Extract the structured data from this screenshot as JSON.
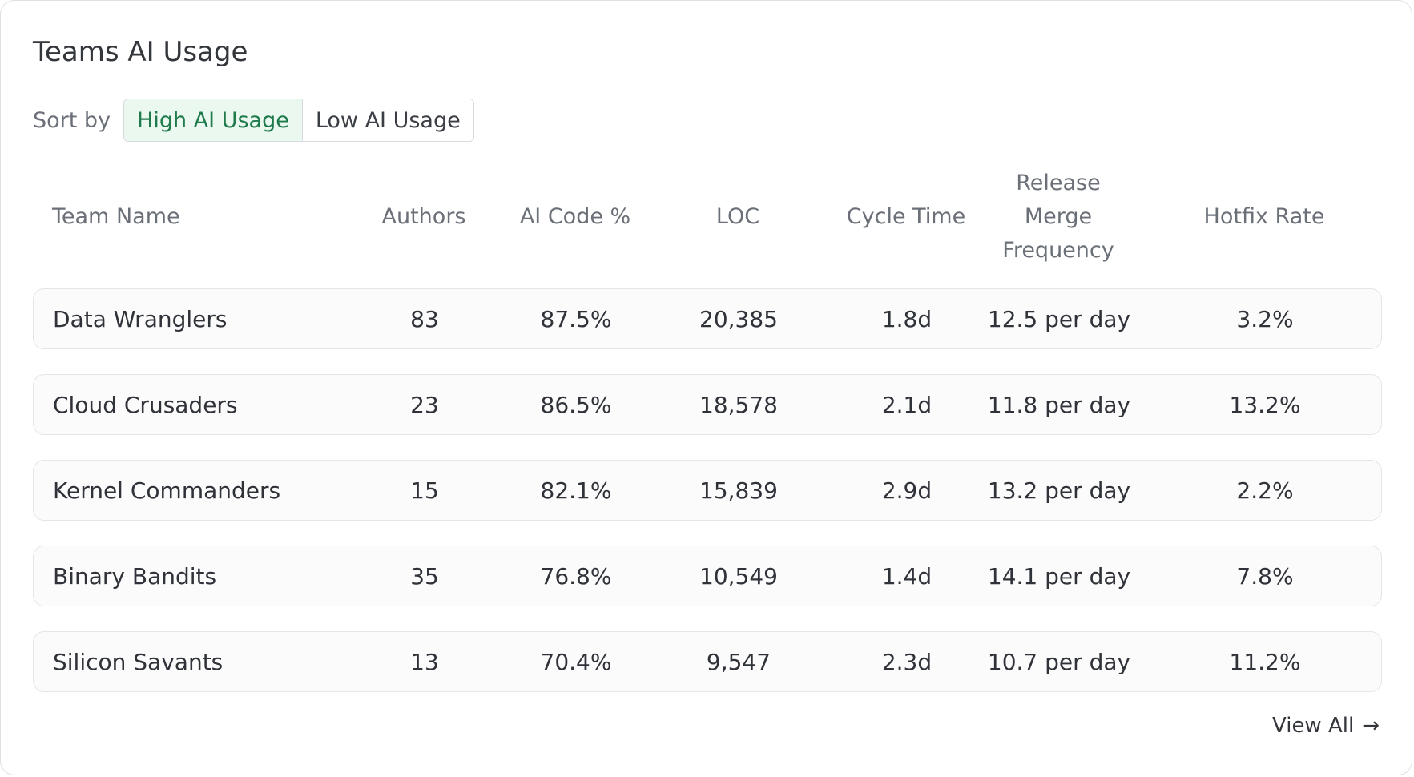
{
  "title": "Teams AI Usage",
  "sort": {
    "label": "Sort by",
    "options": [
      "High AI Usage",
      "Low AI Usage"
    ],
    "selected": "High AI Usage"
  },
  "table": {
    "columns": [
      "Team Name",
      "Authors",
      "AI Code %",
      "LOC",
      "Cycle Time",
      "Release Merge Frequency",
      "Hotfix Rate"
    ],
    "column_lines": {
      "release": [
        "Release",
        "Merge",
        "Frequency"
      ]
    },
    "rows": [
      [
        "Data Wranglers",
        "83",
        "87.5%",
        "20,385",
        "1.8d",
        "12.5 per day",
        "3.2%"
      ],
      [
        "Cloud Crusaders",
        "23",
        "86.5%",
        "18,578",
        "2.1d",
        "11.8 per day",
        "13.2%"
      ],
      [
        "Kernel Commanders",
        "15",
        "82.1%",
        "15,839",
        "2.9d",
        "13.2 per day",
        "2.2%"
      ],
      [
        "Binary Bandits",
        "35",
        "76.8%",
        "10,549",
        "1.4d",
        "14.1 per day",
        "7.8%"
      ],
      [
        "Silicon Savants",
        "13",
        "70.4%",
        "9,547",
        "2.3d",
        "10.7 per day",
        "11.2%"
      ]
    ]
  },
  "footer": {
    "view_all": "View All",
    "arrow_icon": "arrow-right-icon"
  },
  "colors": {
    "active_bg": "#eaf8ef",
    "active_text": "#1f7a4c",
    "border": "#e3e5e8"
  }
}
